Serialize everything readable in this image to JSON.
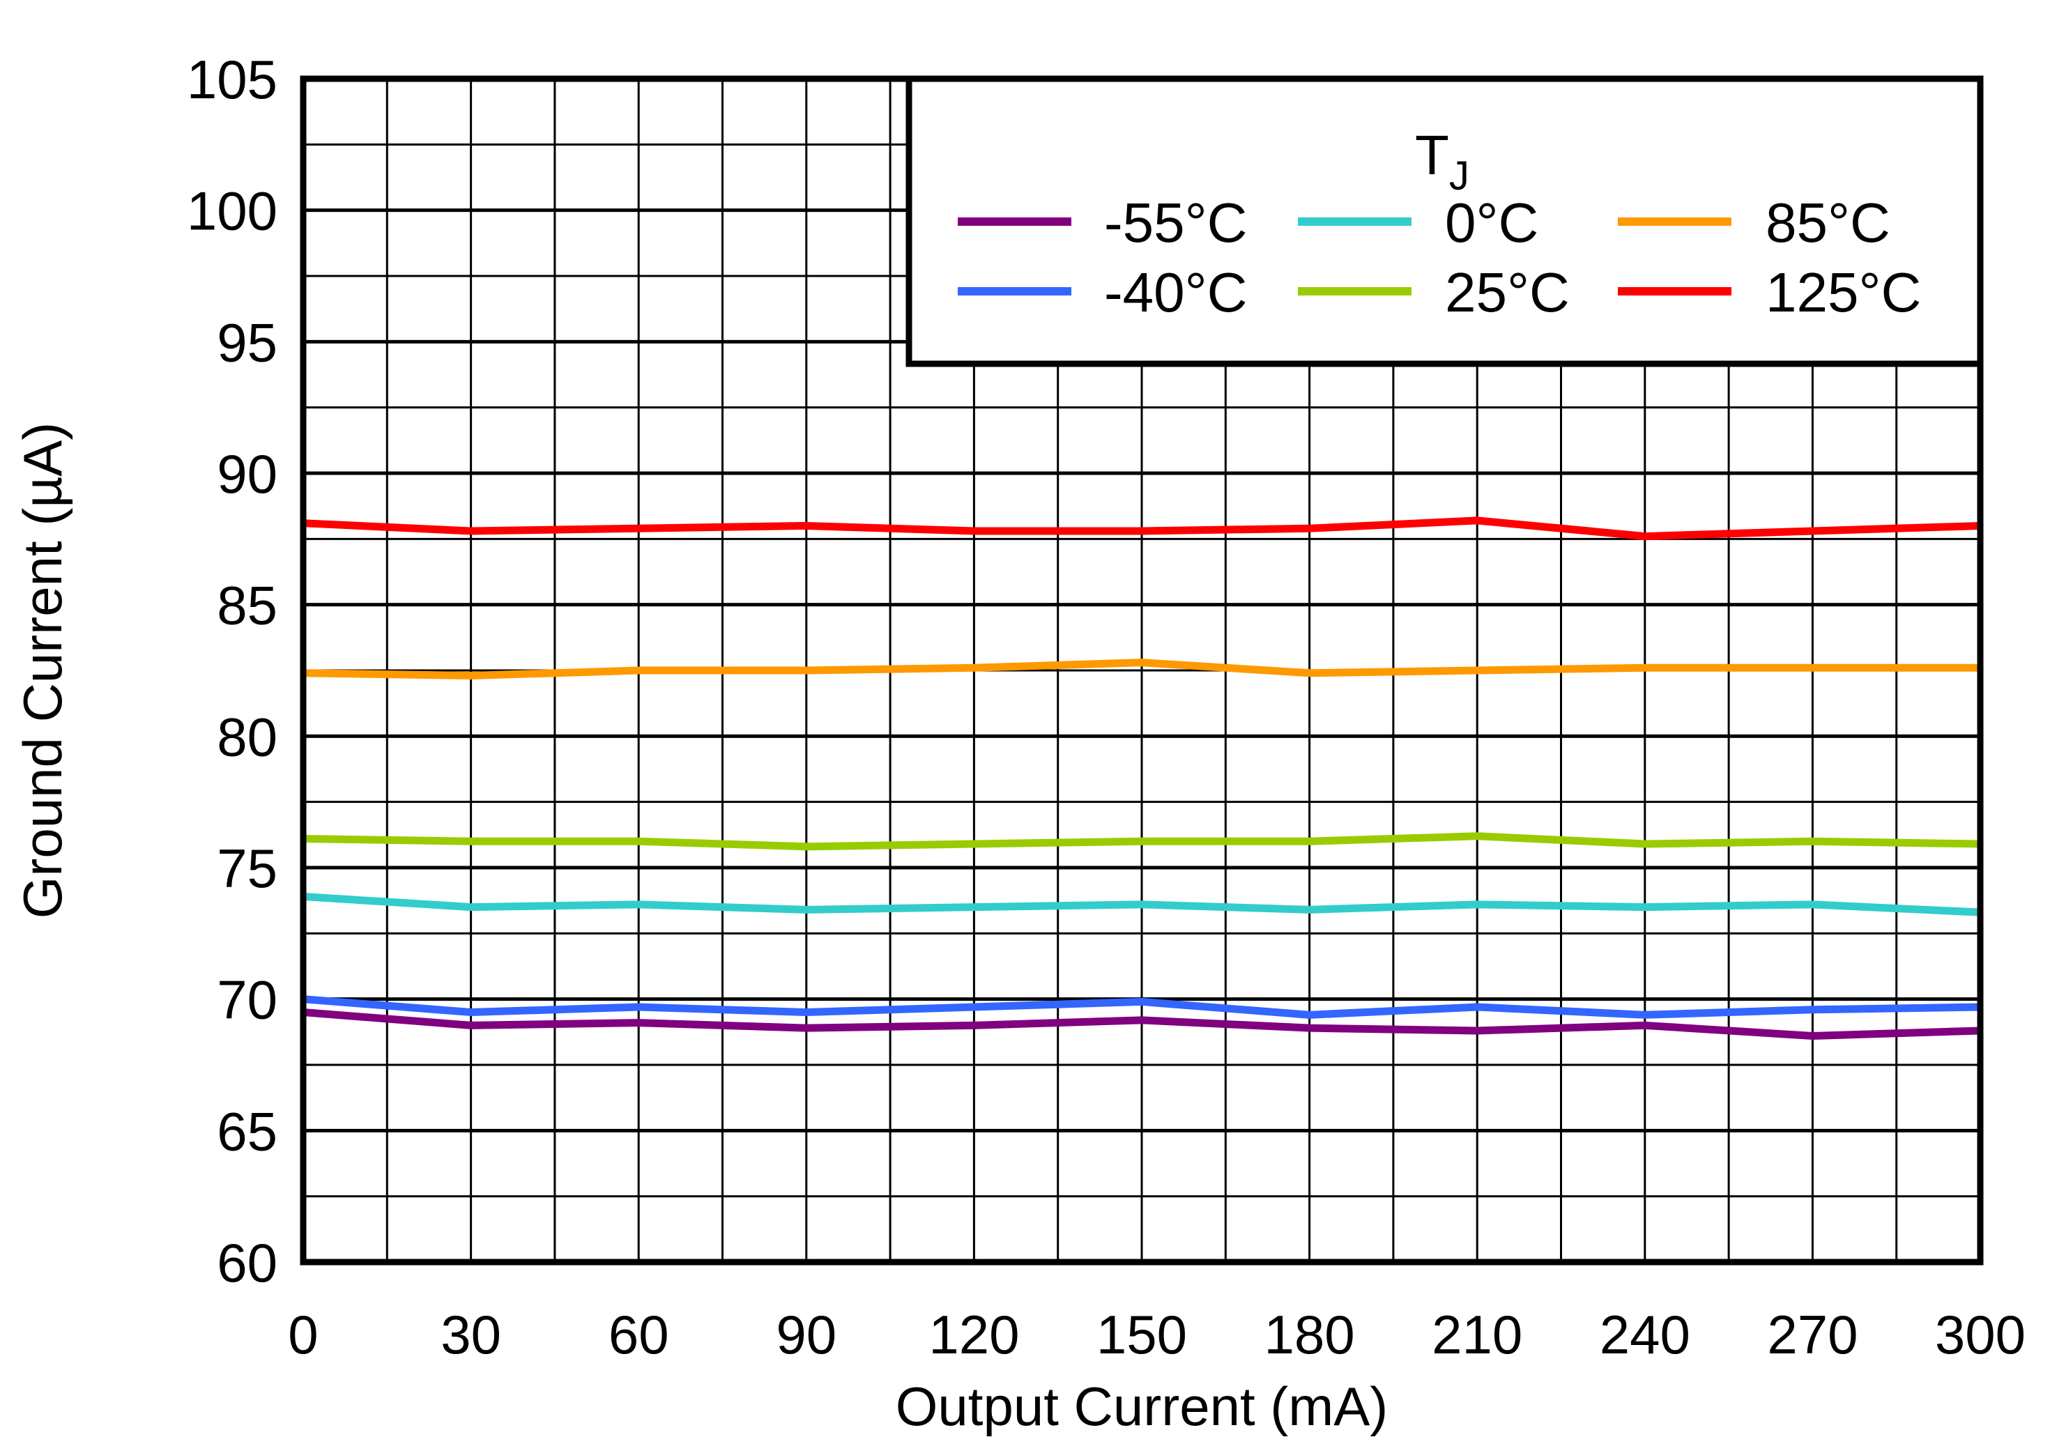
{
  "chart_data": {
    "type": "line",
    "title": "",
    "xlabel": "Output Current (mA)",
    "ylabel": "Ground Current (µA)",
    "xlim": [
      0,
      300
    ],
    "ylim": [
      60,
      105
    ],
    "x_ticks": [
      "0",
      "30",
      "60",
      "90",
      "120",
      "150",
      "180",
      "210",
      "240",
      "270",
      "300"
    ],
    "y_ticks": [
      "60",
      "65",
      "70",
      "75",
      "80",
      "85",
      "90",
      "95",
      "100",
      "105"
    ],
    "grid": true,
    "legend": {
      "title": "T",
      "title_subscript": "J",
      "placement": "top-right"
    },
    "x": [
      0,
      30,
      60,
      90,
      120,
      150,
      180,
      210,
      240,
      270,
      300
    ],
    "series": [
      {
        "name": "-55°C",
        "color": "#800080",
        "values": [
          69.5,
          69.0,
          69.1,
          68.9,
          69.0,
          69.2,
          68.9,
          68.8,
          69.0,
          68.6,
          68.8
        ]
      },
      {
        "name": "-40°C",
        "color": "#3366FF",
        "values": [
          70.0,
          69.5,
          69.7,
          69.5,
          69.7,
          69.9,
          69.4,
          69.7,
          69.4,
          69.6,
          69.7
        ]
      },
      {
        "name": "0°C",
        "color": "#33CCCC",
        "values": [
          73.9,
          73.5,
          73.6,
          73.4,
          73.5,
          73.6,
          73.4,
          73.6,
          73.5,
          73.6,
          73.3
        ]
      },
      {
        "name": "25°C",
        "color": "#99CC00",
        "values": [
          76.1,
          76.0,
          76.0,
          75.8,
          75.9,
          76.0,
          76.0,
          76.2,
          75.9,
          76.0,
          75.9
        ]
      },
      {
        "name": "85°C",
        "color": "#FF9900",
        "values": [
          82.4,
          82.3,
          82.5,
          82.5,
          82.6,
          82.8,
          82.4,
          82.5,
          82.6,
          82.6,
          82.6
        ]
      },
      {
        "name": "125°C",
        "color": "#FF0000",
        "values": [
          88.1,
          87.8,
          87.9,
          88.0,
          87.8,
          87.8,
          87.9,
          88.2,
          87.6,
          87.8,
          88.0
        ]
      }
    ]
  }
}
